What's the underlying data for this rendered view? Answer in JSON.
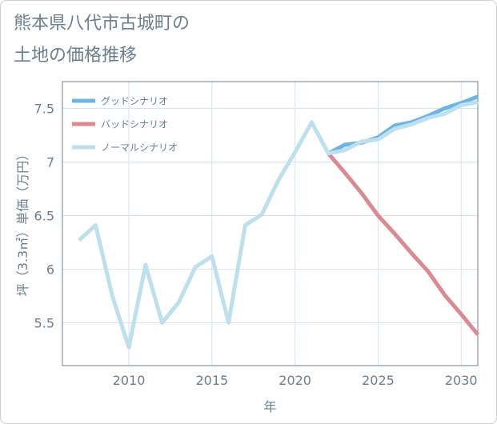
{
  "page": {
    "title_line1": "熊本県八代市古城町の",
    "title_line2": "土地の価格推移"
  },
  "colors": {
    "good": "#6cb4e6",
    "bad": "#db8a92",
    "normal": "#bde0ec",
    "grid": "#d3e3ef",
    "text": "#6c7f8e",
    "axis": "#6c7f8e"
  },
  "chart_data": {
    "type": "line",
    "title": "",
    "xlabel": "年",
    "ylabel": "坪（3.3㎡）単価（万円）",
    "xlim": [
      2006,
      2031
    ],
    "ylim": [
      5.1,
      7.75
    ],
    "x_ticks": [
      2010,
      2015,
      2020,
      2025,
      2030
    ],
    "x_tick_labels": [
      "2010",
      "2015",
      "2020",
      "2025",
      "2030"
    ],
    "y_ticks": [
      5.5,
      6,
      6.5,
      7,
      7.5
    ],
    "y_tick_labels": [
      "5.5",
      "6",
      "6.5",
      "7",
      "7.5"
    ],
    "grid": true,
    "legend_position": "top-left",
    "series": [
      {
        "name": "グッドシナリオ",
        "color_key": "good",
        "x": [
          2022,
          2023,
          2024,
          2025,
          2026,
          2027,
          2028,
          2029,
          2030,
          2031
        ],
        "y": [
          7.08,
          7.16,
          7.18,
          7.23,
          7.34,
          7.37,
          7.43,
          7.5,
          7.55,
          7.61
        ]
      },
      {
        "name": "バッドシナリオ",
        "color_key": "bad",
        "x": [
          2022,
          2023,
          2024,
          2025,
          2026,
          2027,
          2028,
          2029,
          2030,
          2031
        ],
        "y": [
          7.08,
          6.9,
          6.71,
          6.5,
          6.33,
          6.15,
          5.98,
          5.76,
          5.58,
          5.39
        ]
      },
      {
        "name": "ノーマルシナリオ",
        "color_key": "normal",
        "x": [
          2007,
          2008,
          2009,
          2010,
          2011,
          2012,
          2013,
          2014,
          2015,
          2016,
          2017,
          2018,
          2019,
          2020,
          2021,
          2022,
          2023,
          2024,
          2025,
          2026,
          2027,
          2028,
          2029,
          2030,
          2031
        ],
        "y": [
          6.27,
          6.41,
          5.75,
          5.27,
          6.04,
          5.5,
          5.69,
          6.02,
          6.12,
          5.5,
          6.41,
          6.51,
          6.83,
          7.09,
          7.37,
          7.08,
          7.11,
          7.19,
          7.21,
          7.31,
          7.35,
          7.41,
          7.45,
          7.53,
          7.56
        ]
      }
    ]
  }
}
